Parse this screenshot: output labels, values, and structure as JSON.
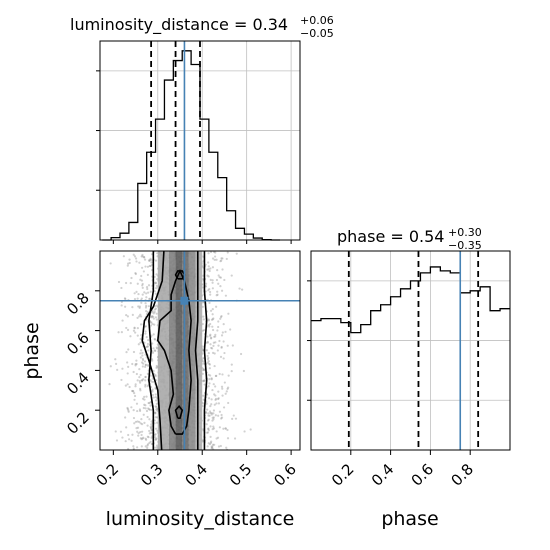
{
  "chart_data": {
    "type": "corner",
    "parameters": [
      "luminosity_distance",
      "phase"
    ],
    "truths": {
      "luminosity_distance": 0.36,
      "phase": 0.75
    },
    "panels": {
      "luminosity_distance_hist": {
        "title_main": "luminosity_distance = 0.34",
        "title_sup": "+0.06",
        "title_sub": "−0.05",
        "xlim": [
          0.17,
          0.62
        ],
        "ylim": [
          0,
          1.0
        ],
        "bin_edges": [
          0.175,
          0.195,
          0.215,
          0.235,
          0.255,
          0.275,
          0.295,
          0.315,
          0.335,
          0.355,
          0.375,
          0.395,
          0.415,
          0.435,
          0.455,
          0.475,
          0.495,
          0.515,
          0.535,
          0.555,
          0.575
        ],
        "counts": [
          0.0,
          0.012,
          0.035,
          0.09,
          0.29,
          0.45,
          0.62,
          0.82,
          0.92,
          0.97,
          0.9,
          0.62,
          0.45,
          0.32,
          0.15,
          0.06,
          0.03,
          0.01,
          0.002,
          0.0
        ],
        "quantile_lines": [
          0.285,
          0.34,
          0.395
        ],
        "yticks_frac": [
          0.25,
          0.55,
          0.85
        ],
        "grid_x": [
          0.3,
          0.4,
          0.5,
          0.6
        ],
        "grid_y_frac": [
          0.25,
          0.55,
          0.85
        ]
      },
      "phase_hist": {
        "title_main": "phase = 0.54",
        "title_sup": "+0.30",
        "title_sub": "−0.35",
        "xlim": [
          0.0,
          1.0
        ],
        "ylim": [
          0,
          1.0
        ],
        "bin_edges": [
          0.0,
          0.05,
          0.1,
          0.15,
          0.2,
          0.25,
          0.3,
          0.35,
          0.4,
          0.45,
          0.5,
          0.55,
          0.6,
          0.65,
          0.7,
          0.75,
          0.8,
          0.85,
          0.9,
          0.95,
          1.0
        ],
        "counts": [
          0.65,
          0.66,
          0.66,
          0.64,
          0.59,
          0.63,
          0.7,
          0.73,
          0.77,
          0.81,
          0.85,
          0.89,
          0.92,
          0.9,
          0.89,
          0.79,
          0.8,
          0.82,
          0.7,
          0.71
        ],
        "quantile_lines": [
          0.19,
          0.54,
          0.84
        ],
        "grid_x": [
          0.2,
          0.4,
          0.6,
          0.8
        ],
        "grid_y_frac": [
          0.25,
          0.55,
          0.85
        ]
      },
      "joint": {
        "xlim": [
          0.17,
          0.62
        ],
        "ylim": [
          0.0,
          1.0
        ],
        "grid_x": [
          0.2,
          0.3,
          0.4,
          0.5,
          0.6
        ],
        "grid_y": [
          0.2,
          0.4,
          0.6,
          0.8
        ],
        "density_columns": [
          {
            "x0": 0.3,
            "x1": 0.325,
            "shade": "#a8a8a8"
          },
          {
            "x0": 0.325,
            "x1": 0.34,
            "shade": "#808080"
          },
          {
            "x0": 0.34,
            "x1": 0.355,
            "shade": "#5a5a5a"
          },
          {
            "x0": 0.355,
            "x1": 0.37,
            "shade": "#6a6a6a"
          },
          {
            "x0": 0.37,
            "x1": 0.385,
            "shade": "#8a8a8a"
          },
          {
            "x0": 0.385,
            "x1": 0.4,
            "shade": "#b0b0b0"
          }
        ]
      }
    },
    "axes": {
      "x_bottom_left": {
        "label": "luminosity_distance",
        "ticks": [
          0.2,
          0.3,
          0.4,
          0.5,
          0.6
        ],
        "tick_labels": [
          "0.2",
          "0.3",
          "0.4",
          "0.5",
          "0.6"
        ]
      },
      "x_bottom_right": {
        "label": "phase",
        "ticks": [
          0.2,
          0.4,
          0.6,
          0.8
        ],
        "tick_labels": [
          "0.2",
          "0.4",
          "0.6",
          "0.8"
        ]
      },
      "y_left": {
        "label": "phase",
        "ticks": [
          0.2,
          0.4,
          0.6,
          0.8
        ],
        "tick_labels": [
          "0.2",
          "0.4",
          "0.6",
          "0.8"
        ]
      }
    },
    "colors": {
      "truth": "#4682b4",
      "hist": "#000000",
      "grid": "#c0c0c0",
      "points": "#9a9a9a"
    }
  }
}
